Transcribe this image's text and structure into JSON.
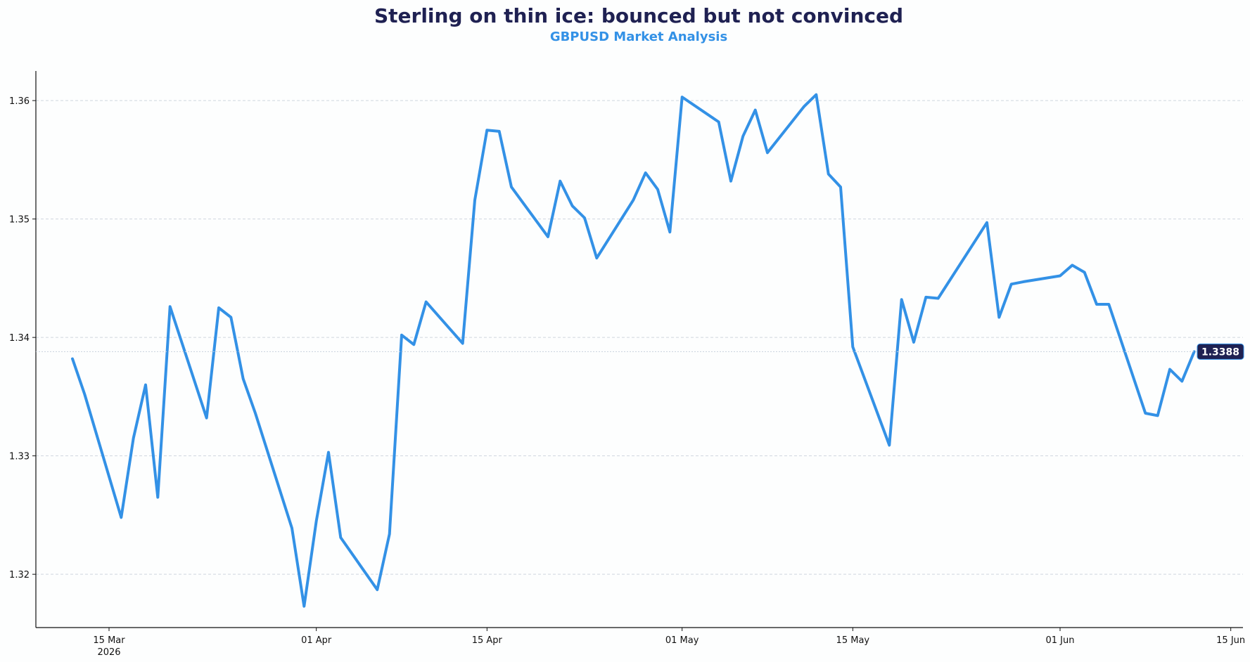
{
  "chart_data": {
    "type": "line",
    "title": "Sterling on thin ice: bounced but not convinced",
    "subtitle": "GBPUSD Market Analysis",
    "xlabel": "",
    "ylabel": "",
    "xlim": [
      "2026-03-09",
      "2026-06-16"
    ],
    "ylim": [
      1.3155,
      1.3625
    ],
    "grid": "horizontal",
    "legend": "none",
    "x_ticks": [
      {
        "date": "2026-03-15",
        "label": "15 Mar",
        "sublabel": "2026"
      },
      {
        "date": "2026-04-01",
        "label": "01 Apr",
        "sublabel": ""
      },
      {
        "date": "2026-04-15",
        "label": "15 Apr",
        "sublabel": ""
      },
      {
        "date": "2026-05-01",
        "label": "01 May",
        "sublabel": ""
      },
      {
        "date": "2026-05-15",
        "label": "15 May",
        "sublabel": ""
      },
      {
        "date": "2026-06-01",
        "label": "01 Jun",
        "sublabel": ""
      },
      {
        "date": "2026-06-15",
        "label": "15 Jun",
        "sublabel": ""
      }
    ],
    "y_ticks": [
      {
        "value": 1.32,
        "label": "1.32"
      },
      {
        "value": 1.33,
        "label": "1.33"
      },
      {
        "value": 1.34,
        "label": "1.34"
      },
      {
        "value": 1.35,
        "label": "1.35"
      },
      {
        "value": 1.36,
        "label": "1.36"
      }
    ],
    "last_value_label": "1.3388",
    "last_value": 1.3388,
    "colors": {
      "line": "#3391e6",
      "title": "#1f2152",
      "subtitle": "#3391e6",
      "badge": "#1f2152"
    },
    "series": [
      {
        "x": [
          "2026-03-12",
          "2026-03-13",
          "2026-03-16",
          "2026-03-17",
          "2026-03-18",
          "2026-03-19",
          "2026-03-20",
          "2026-03-23",
          "2026-03-24",
          "2026-03-25",
          "2026-03-26",
          "2026-03-27",
          "2026-03-30",
          "2026-03-31",
          "2026-04-01",
          "2026-04-02",
          "2026-04-03",
          "2026-04-06",
          "2026-04-07",
          "2026-04-08",
          "2026-04-09",
          "2026-04-10",
          "2026-04-13",
          "2026-04-14",
          "2026-04-15",
          "2026-04-16",
          "2026-04-17",
          "2026-04-20",
          "2026-04-21",
          "2026-04-22",
          "2026-04-23",
          "2026-04-24",
          "2026-04-27",
          "2026-04-28",
          "2026-04-29",
          "2026-04-30",
          "2026-05-01",
          "2026-05-04",
          "2026-05-05",
          "2026-05-06",
          "2026-05-07",
          "2026-05-08",
          "2026-05-11",
          "2026-05-12",
          "2026-05-13",
          "2026-05-14",
          "2026-05-15",
          "2026-05-18",
          "2026-05-19",
          "2026-05-20",
          "2026-05-21",
          "2026-05-22",
          "2026-05-25",
          "2026-05-26",
          "2026-05-27",
          "2026-05-28",
          "2026-05-29",
          "2026-06-01",
          "2026-06-02",
          "2026-06-03",
          "2026-06-04",
          "2026-06-05",
          "2026-06-08",
          "2026-06-09",
          "2026-06-10",
          "2026-06-11",
          "2026-06-12"
        ],
        "values": [
          1.3382,
          1.3352,
          1.3248,
          1.3315,
          1.336,
          1.3265,
          1.3426,
          1.3332,
          1.3425,
          1.3417,
          1.3365,
          1.3336,
          1.3239,
          1.3173,
          1.3245,
          1.3303,
          1.3231,
          1.3187,
          1.3234,
          1.3402,
          1.3394,
          1.343,
          1.3395,
          1.3516,
          1.3575,
          1.3574,
          1.3527,
          1.3485,
          1.3532,
          1.3511,
          1.3501,
          1.3467,
          1.3516,
          1.3539,
          1.3525,
          1.3489,
          1.3603,
          1.3582,
          1.3532,
          1.357,
          1.3592,
          1.3556,
          1.3595,
          1.3605,
          1.3538,
          1.3527,
          1.3392,
          1.3309,
          1.3432,
          1.3396,
          1.3434,
          1.3433,
          1.3481,
          1.3497,
          1.3417,
          1.3445,
          1.3447,
          1.3452,
          1.3461,
          1.3455,
          1.3428,
          1.3428,
          1.3336,
          1.3334,
          1.3373,
          1.3363,
          1.3388
        ]
      }
    ]
  }
}
